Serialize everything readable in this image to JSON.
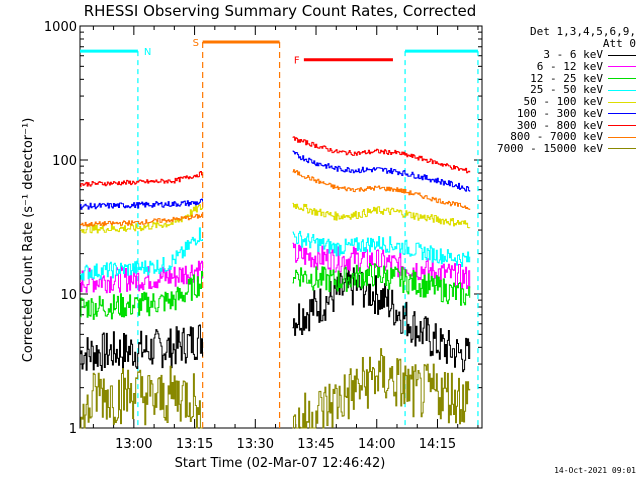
{
  "chart_data": {
    "type": "line",
    "title": "RHESSI Observing Summary Count Rates, Corrected",
    "xlabel": "Start Time (02-Mar-07 12:46:42)",
    "ylabel": "Corrected Count Rate (s⁻¹ detector⁻¹)",
    "x_unit": "UT time (hh:mm), 02-Mar-2007",
    "xlim": [
      "12:46:42",
      "14:26:00"
    ],
    "x_ticks": [
      "13:00",
      "13:15",
      "13:30",
      "13:45",
      "14:00",
      "14:15"
    ],
    "y_scale": "log",
    "ylim": [
      1,
      1000
    ],
    "y_tick_labels": [
      "1",
      "10",
      "100",
      "1000"
    ],
    "grid": false,
    "legend_position": "right",
    "legend_header": [
      "Det 1,3,4,5,6,9,",
      "Att 0"
    ],
    "series": [
      {
        "name": "3 - 6 keV",
        "color": "#000000",
        "points": [
          [
            "12:46:42",
            3.6
          ],
          [
            "13:00",
            3.8
          ],
          [
            "13:10",
            4.0
          ],
          [
            "13:16",
            4.6
          ],
          [
            "13:39",
            6.5
          ],
          [
            "13:42",
            7.2
          ],
          [
            "13:45",
            8.0
          ],
          [
            "13:50",
            10.0
          ],
          [
            "13:55",
            11.5
          ],
          [
            "13:58",
            10.5
          ],
          [
            "14:01",
            9.5
          ],
          [
            "14:05",
            7.5
          ],
          [
            "14:10",
            5.5
          ],
          [
            "14:15",
            4.2
          ],
          [
            "14:20",
            3.6
          ],
          [
            "14:23",
            3.4
          ]
        ]
      },
      {
        "name": "6 - 12 keV",
        "color": "#ff00ff",
        "points": [
          [
            "12:46:42",
            12.5
          ],
          [
            "13:00",
            13.0
          ],
          [
            "13:10",
            13.5
          ],
          [
            "13:16",
            15.5
          ],
          [
            "13:39",
            19.5
          ],
          [
            "13:45",
            19.0
          ],
          [
            "13:50",
            18.0
          ],
          [
            "13:55",
            18.5
          ],
          [
            "14:00",
            17.5
          ],
          [
            "14:05",
            16.5
          ],
          [
            "14:10",
            15.5
          ],
          [
            "14:15",
            14.5
          ],
          [
            "14:20",
            13.5
          ],
          [
            "14:23",
            13.0
          ]
        ]
      },
      {
        "name": "12 - 25 keV",
        "color": "#00dd00",
        "points": [
          [
            "12:46:42",
            8.0
          ],
          [
            "13:00",
            8.2
          ],
          [
            "13:10",
            9.0
          ],
          [
            "13:16",
            12.0
          ],
          [
            "13:39",
            14.5
          ],
          [
            "13:45",
            13.0
          ],
          [
            "13:50",
            12.5
          ],
          [
            "13:55",
            13.5
          ],
          [
            "14:00",
            14.0
          ],
          [
            "14:05",
            13.0
          ],
          [
            "14:10",
            12.0
          ],
          [
            "14:15",
            11.0
          ],
          [
            "14:20",
            10.0
          ],
          [
            "14:23",
            9.5
          ]
        ]
      },
      {
        "name": "25 - 50 keV",
        "color": "#00ffff",
        "points": [
          [
            "12:46:42",
            14.5
          ],
          [
            "13:00",
            15.5
          ],
          [
            "13:08",
            16.5
          ],
          [
            "13:12",
            20.0
          ],
          [
            "13:16",
            28.0
          ],
          [
            "13:39",
            27.0
          ],
          [
            "13:45",
            24.0
          ],
          [
            "13:50",
            22.0
          ],
          [
            "13:55",
            23.0
          ],
          [
            "14:00",
            24.0
          ],
          [
            "14:05",
            23.0
          ],
          [
            "14:10",
            21.0
          ],
          [
            "14:15",
            19.5
          ],
          [
            "14:20",
            18.5
          ],
          [
            "14:23",
            18.0
          ]
        ]
      },
      {
        "name": "50 - 100 keV",
        "color": "#dddd00",
        "points": [
          [
            "12:46:42",
            30.5
          ],
          [
            "13:00",
            31.0
          ],
          [
            "13:10",
            34.0
          ],
          [
            "13:16",
            44.0
          ],
          [
            "13:39",
            47.0
          ],
          [
            "13:45",
            41.0
          ],
          [
            "13:50",
            38.0
          ],
          [
            "13:55",
            39.0
          ],
          [
            "14:00",
            42.0
          ],
          [
            "14:05",
            41.0
          ],
          [
            "14:10",
            38.0
          ],
          [
            "14:15",
            36.0
          ],
          [
            "14:20",
            34.0
          ],
          [
            "14:23",
            33.0
          ]
        ]
      },
      {
        "name": "100 - 300 keV",
        "color": "#0000ff",
        "points": [
          [
            "12:46:42",
            45.0
          ],
          [
            "13:00",
            46.0
          ],
          [
            "13:10",
            47.0
          ],
          [
            "13:16",
            48.0
          ],
          [
            "13:39",
            112.0
          ],
          [
            "13:45",
            95.0
          ],
          [
            "13:50",
            86.0
          ],
          [
            "13:55",
            84.0
          ],
          [
            "14:00",
            85.0
          ],
          [
            "14:05",
            82.0
          ],
          [
            "14:10",
            76.0
          ],
          [
            "14:15",
            70.0
          ],
          [
            "14:20",
            64.0
          ],
          [
            "14:23",
            60.0
          ]
        ]
      },
      {
        "name": "300 - 800 keV",
        "color": "#ff0000",
        "points": [
          [
            "12:46:42",
            66.0
          ],
          [
            "13:00",
            68.0
          ],
          [
            "13:10",
            70.0
          ],
          [
            "13:16",
            78.0
          ],
          [
            "13:39",
            145.0
          ],
          [
            "13:45",
            128.0
          ],
          [
            "13:50",
            115.0
          ],
          [
            "13:55",
            112.0
          ],
          [
            "14:00",
            116.0
          ],
          [
            "14:05",
            113.0
          ],
          [
            "14:10",
            104.0
          ],
          [
            "14:15",
            95.0
          ],
          [
            "14:20",
            86.0
          ],
          [
            "14:23",
            82.0
          ]
        ]
      },
      {
        "name": "800 - 7000 keV",
        "color": "#ff7700",
        "points": [
          [
            "12:46:42",
            33.0
          ],
          [
            "13:00",
            34.0
          ],
          [
            "13:10",
            36.0
          ],
          [
            "13:16",
            38.0
          ],
          [
            "13:39",
            83.0
          ],
          [
            "13:45",
            70.0
          ],
          [
            "13:50",
            62.0
          ],
          [
            "13:55",
            60.0
          ],
          [
            "14:00",
            62.0
          ],
          [
            "14:05",
            60.0
          ],
          [
            "14:10",
            55.0
          ],
          [
            "14:15",
            50.0
          ],
          [
            "14:20",
            46.0
          ],
          [
            "14:23",
            44.0
          ]
        ]
      },
      {
        "name": "7000 - 15000 keV",
        "color": "#888800",
        "points": [
          [
            "12:46:42",
            1.0
          ],
          [
            "12:51",
            1.9
          ],
          [
            "12:55",
            1.7
          ],
          [
            "13:00",
            1.9
          ],
          [
            "13:05",
            1.6
          ],
          [
            "13:10",
            1.8
          ],
          [
            "13:15",
            1.7
          ],
          [
            "13:16",
            1.0
          ],
          [
            "13:39",
            1.0
          ],
          [
            "13:53",
            1.8
          ],
          [
            "14:00",
            2.5
          ],
          [
            "14:05",
            2.2
          ],
          [
            "14:10",
            1.8
          ],
          [
            "14:15",
            1.9
          ],
          [
            "14:20",
            1.7
          ],
          [
            "14:23",
            1.6
          ]
        ]
      }
    ],
    "data_gaps": [
      [
        "13:17",
        "13:39"
      ]
    ],
    "annotations": [
      {
        "label": "N",
        "type": "night",
        "color": "#00ffff",
        "start": "12:46:42",
        "end": "13:01",
        "level": 650
      },
      {
        "label": "",
        "type": "night",
        "color": "#00ffff",
        "start": "14:07",
        "end": "14:25",
        "level": 650
      },
      {
        "label": "S",
        "type": "saa",
        "color": "#ff7700",
        "start": "13:17",
        "end": "13:36",
        "level": 760
      },
      {
        "label": "F",
        "type": "flare",
        "color": "#ff0000",
        "start": "13:42",
        "end": "14:04",
        "level": 560
      }
    ]
  },
  "footer_date": "14-Oct-2021 09:01"
}
